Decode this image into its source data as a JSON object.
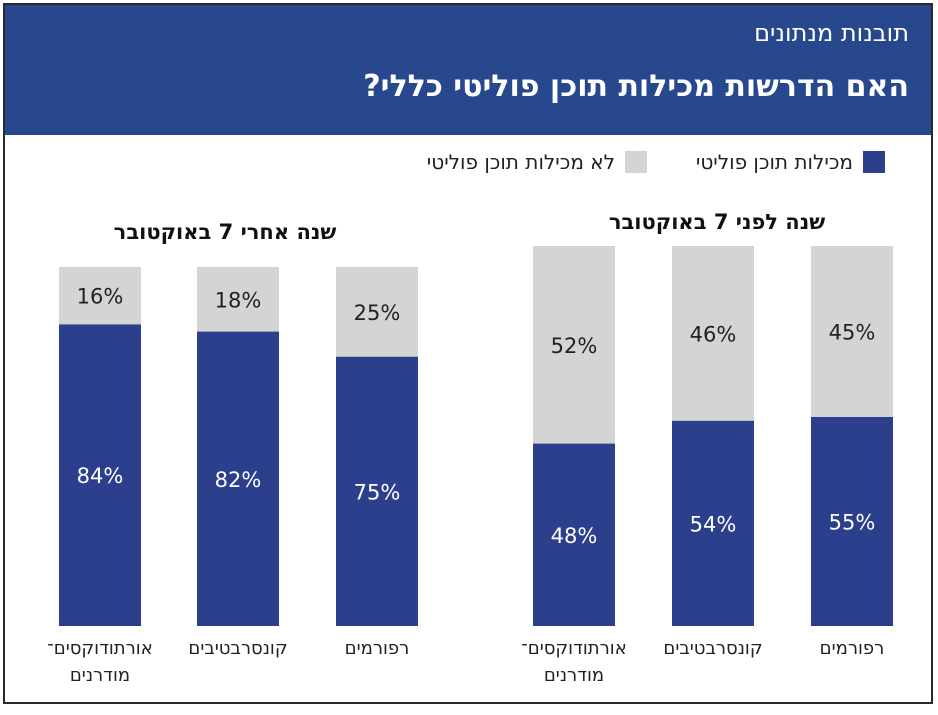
{
  "header": {
    "kicker": "תובנות מנתונים",
    "title": "האם הדרשות מכילות תוכן פוליטי כללי?"
  },
  "legend": [
    {
      "label": "מכילות תוכן פוליטי",
      "color": "#2b3f8c"
    },
    {
      "label": "לא מכילות תוכן פוליטי",
      "color": "#d4d4d4"
    }
  ],
  "chart_data": [
    {
      "type": "bar",
      "stacked": true,
      "title": "שנה לפני 7 באוקטובר",
      "categories": [
        "רפורמים",
        "קונסרבטיבים",
        "אורתודוקסים־\nמודרנים"
      ],
      "series": [
        {
          "name": "מכילות תוכן פוליטי",
          "values": [
            55,
            54,
            48
          ],
          "labels": [
            "55%",
            "54%",
            "48%"
          ]
        },
        {
          "name": "לא מכילות תוכן פוליטי",
          "values": [
            45,
            46,
            52
          ],
          "labels": [
            "45%",
            "46%",
            "52%"
          ]
        }
      ],
      "ylim": [
        0,
        100
      ]
    },
    {
      "type": "bar",
      "stacked": true,
      "title": "שנה אחרי 7 באוקטובר",
      "categories": [
        "רפורמים",
        "קונסרבטיבים",
        "אורתודוקסים־\nמודרנים"
      ],
      "series": [
        {
          "name": "מכילות תוכן פוליטי",
          "values": [
            75,
            82,
            84
          ],
          "labels": [
            "75%",
            "82%",
            "84%"
          ]
        },
        {
          "name": "לא מכילות תוכן פוליטי",
          "values": [
            25,
            18,
            16
          ],
          "labels": [
            "25%",
            "18%",
            "16%"
          ]
        }
      ],
      "ylim": [
        0,
        100
      ]
    }
  ]
}
